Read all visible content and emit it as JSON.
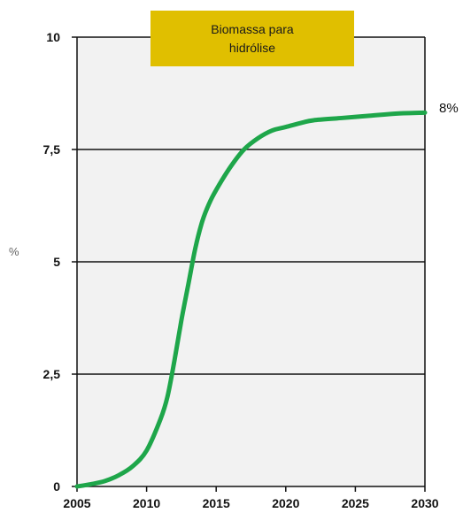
{
  "colors": {
    "background": "#ffffff",
    "plot_background": "#f2f2f2",
    "line": "#1ea64a",
    "title_box": "#e0bf00",
    "grid": "#111111"
  },
  "chart_data": {
    "type": "line",
    "title_lines": [
      "Biomassa para",
      "hidrólise"
    ],
    "ylabel": "%",
    "xlim": [
      2005,
      2030
    ],
    "ylim": [
      0,
      10
    ],
    "x_ticks": [
      2005,
      2010,
      2015,
      2020,
      2025,
      2030
    ],
    "y_ticks": [
      0,
      2.5,
      5,
      7.5,
      10
    ],
    "y_tick_labels": [
      "0",
      "2,5",
      "5",
      "7,5",
      "10"
    ],
    "grid_lines": [
      2.5,
      5,
      7.5
    ],
    "end_label": "8%",
    "series": [
      {
        "x": [
          2005,
          2006,
          2007,
          2008,
          2009,
          2010,
          2011,
          2011.5,
          2012,
          2012.5,
          2013,
          2013.5,
          2014,
          2014.5,
          2015,
          2016,
          2017,
          2018,
          2019,
          2020,
          2021.2,
          2022,
          2024,
          2026,
          2028,
          2030
        ],
        "y": [
          0,
          0.05,
          0.12,
          0.25,
          0.45,
          0.8,
          1.5,
          2.0,
          2.8,
          3.7,
          4.5,
          5.3,
          5.9,
          6.3,
          6.6,
          7.1,
          7.5,
          7.75,
          7.92,
          8.0,
          8.1,
          8.15,
          8.2,
          8.25,
          8.3,
          8.32
        ]
      }
    ]
  }
}
